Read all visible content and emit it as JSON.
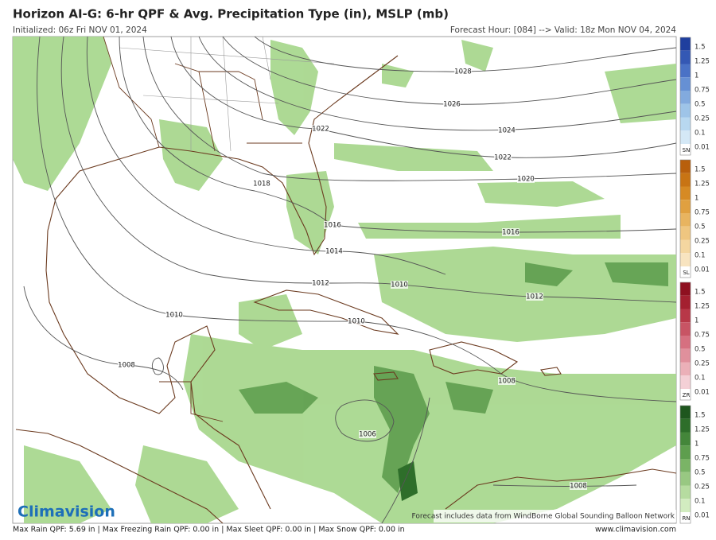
{
  "header": {
    "title": "Horizon AI-G: 6-hr QPF & Avg. Precipitation Type (in), MSLP (mb)",
    "initialized": "Initialized: 06z Fri NOV 01, 2024",
    "valid": "Forecast Hour: [084] --> Valid: 18z Mon NOV 04, 2024"
  },
  "isobar_labels": [
    "1028",
    "1026",
    "1024",
    "1022",
    "1022",
    "1020",
    "1018",
    "1016",
    "1016",
    "1014",
    "1012",
    "1010",
    "1012",
    "1010",
    "1010",
    "1008",
    "1008",
    "1006",
    "1008"
  ],
  "legend": {
    "levels": [
      "1.5",
      "1.25",
      "1",
      "0.75",
      "0.5",
      "0.25",
      "0.1",
      "0.01"
    ],
    "types": [
      {
        "code": "SN",
        "colors": [
          "#1f3f9e",
          "#3458b4",
          "#4a72c6",
          "#6690d4",
          "#82aade",
          "#9ec4e8",
          "#b8d8f0",
          "#d4e8f6"
        ]
      },
      {
        "code": "SL",
        "colors": [
          "#b85f0c",
          "#c87414",
          "#d68a24",
          "#e0a040",
          "#e8b460",
          "#efc680",
          "#f4d6a0",
          "#f8e4c0"
        ]
      },
      {
        "code": "ZR",
        "colors": [
          "#8e1020",
          "#a42030",
          "#b83848",
          "#c85464",
          "#d67080",
          "#e0909c",
          "#ebb0b8",
          "#f4d0d6"
        ]
      },
      {
        "code": "RN",
        "colors": [
          "#1e561e",
          "#2e6e2a",
          "#44863a",
          "#5e9e4e",
          "#7ab466",
          "#98c882",
          "#b6dca0",
          "#d2ecc0"
        ]
      }
    ]
  },
  "logo": "Climavision",
  "note": "Forecast includes data from WindBorne Global Sounding Balloon Network",
  "footer": {
    "stats": "Max Rain QPF: 5.69 in | Max Freezing Rain QPF: 0.00 in | Max Sleet QPF: 0.00 in | Max Snow QPF: 0.00 in",
    "site": "www.climavision.com"
  }
}
